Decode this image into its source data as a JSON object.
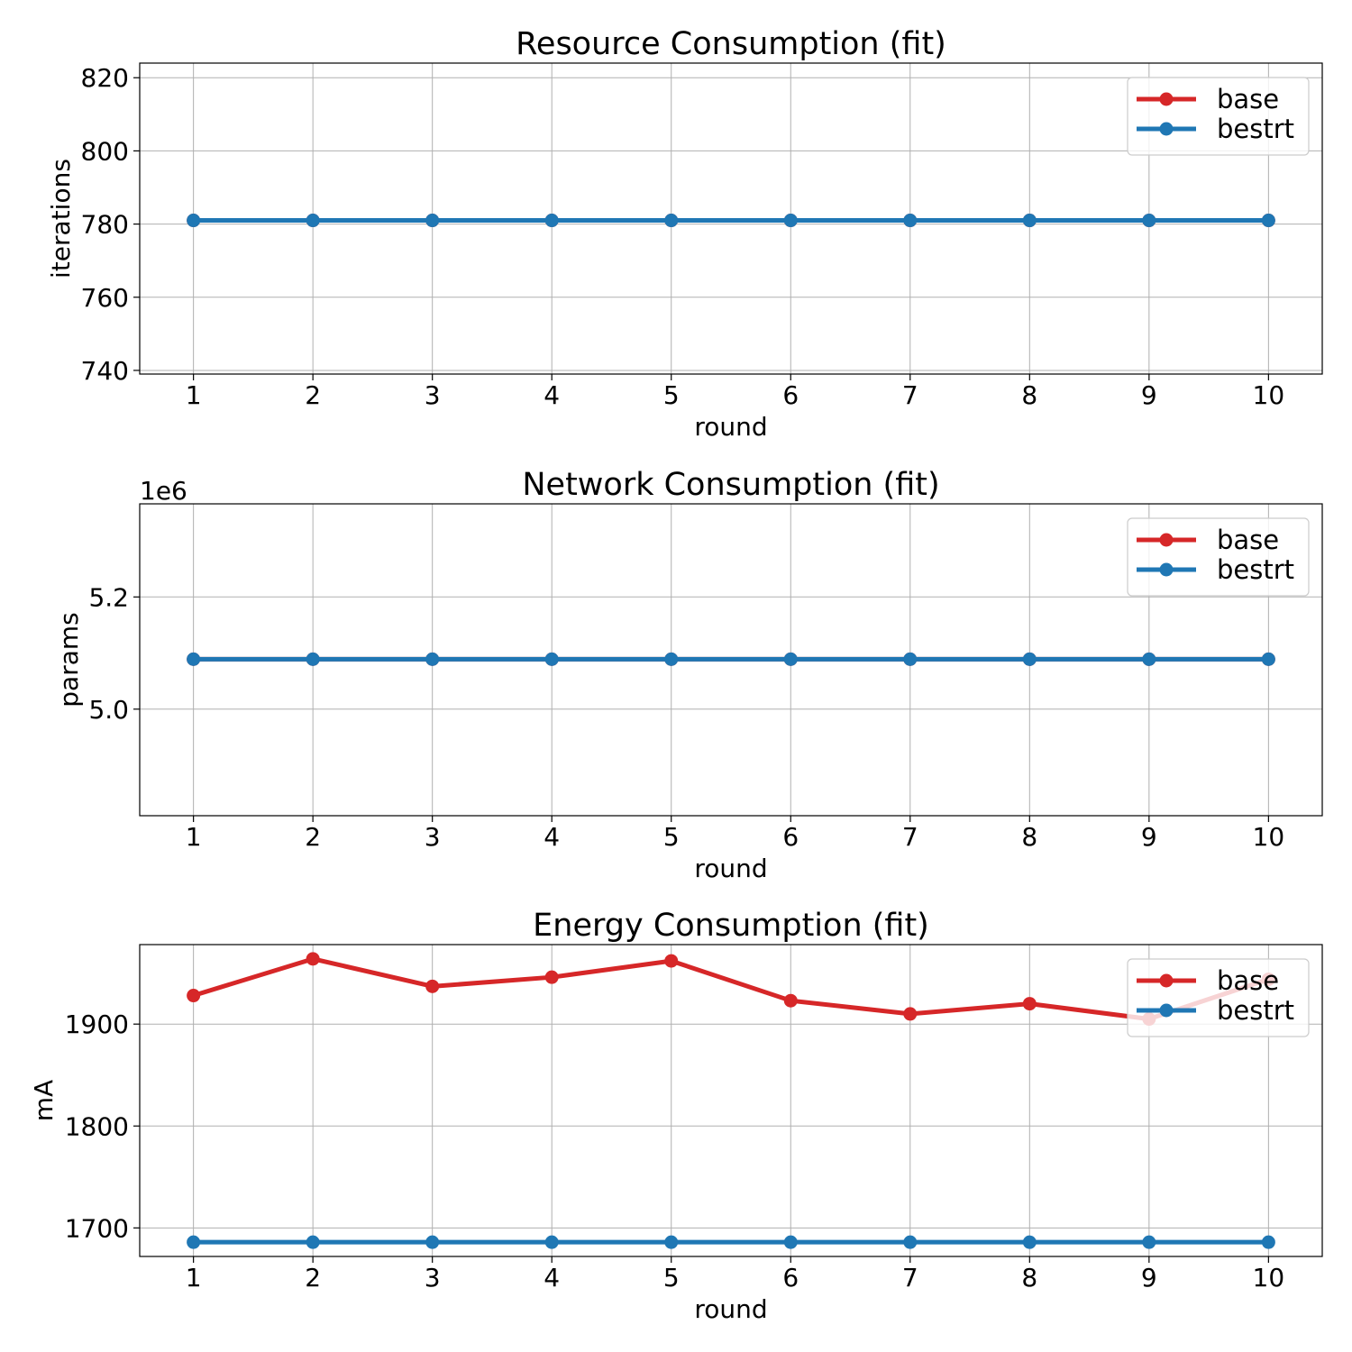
{
  "chart_data": [
    {
      "type": "line",
      "title": "Resource Consumption (fit)",
      "xlabel": "round",
      "ylabel": "iterations",
      "offset_text": "",
      "x": [
        1,
        2,
        3,
        4,
        5,
        6,
        7,
        8,
        9,
        10
      ],
      "xlim": [
        0.55,
        10.45
      ],
      "ylim": [
        739,
        824
      ],
      "yticks": [
        740,
        760,
        780,
        800,
        820
      ],
      "ytick_labels": [
        "740",
        "760",
        "780",
        "800",
        "820"
      ],
      "grid": true,
      "legend_position": "top-right",
      "series": [
        {
          "name": "base",
          "color": "#d62728",
          "values": [
            781,
            781,
            781,
            781,
            781,
            781,
            781,
            781,
            781,
            781
          ]
        },
        {
          "name": "bestrt",
          "color": "#1f77b4",
          "values": [
            781,
            781,
            781,
            781,
            781,
            781,
            781,
            781,
            781,
            781
          ]
        }
      ]
    },
    {
      "type": "line",
      "title": "Network Consumption (fit)",
      "xlabel": "round",
      "ylabel": "params",
      "offset_text": "1e6",
      "x": [
        1,
        2,
        3,
        4,
        5,
        6,
        7,
        8,
        9,
        10
      ],
      "xlim": [
        0.55,
        10.45
      ],
      "ylim": [
        4.81,
        5.366
      ],
      "yticks": [
        5.0,
        5.2
      ],
      "ytick_labels": [
        "5.0",
        "5.2"
      ],
      "grid": true,
      "legend_position": "top-right",
      "series": [
        {
          "name": "base",
          "color": "#d62728",
          "values": [
            5.089,
            5.089,
            5.089,
            5.089,
            5.089,
            5.089,
            5.089,
            5.089,
            5.089,
            5.089
          ]
        },
        {
          "name": "bestrt",
          "color": "#1f77b4",
          "values": [
            5.089,
            5.089,
            5.089,
            5.089,
            5.089,
            5.089,
            5.089,
            5.089,
            5.089,
            5.089
          ]
        }
      ]
    },
    {
      "type": "line",
      "title": "Energy Consumption (fit)",
      "xlabel": "round",
      "ylabel": "mA",
      "offset_text": "",
      "x": [
        1,
        2,
        3,
        4,
        5,
        6,
        7,
        8,
        9,
        10
      ],
      "xlim": [
        0.55,
        10.45
      ],
      "ylim": [
        1672,
        1978
      ],
      "yticks": [
        1700,
        1800,
        1900
      ],
      "ytick_labels": [
        "1700",
        "1800",
        "1900"
      ],
      "grid": true,
      "legend_position": "top-right",
      "series": [
        {
          "name": "base",
          "color": "#d62728",
          "values": [
            1928,
            1964,
            1937,
            1946,
            1962,
            1923,
            1910,
            1920,
            1905,
            1944
          ]
        },
        {
          "name": "bestrt",
          "color": "#1f77b4",
          "values": [
            1686,
            1686,
            1686,
            1686,
            1686,
            1686,
            1686,
            1686,
            1686,
            1686
          ]
        }
      ]
    }
  ]
}
